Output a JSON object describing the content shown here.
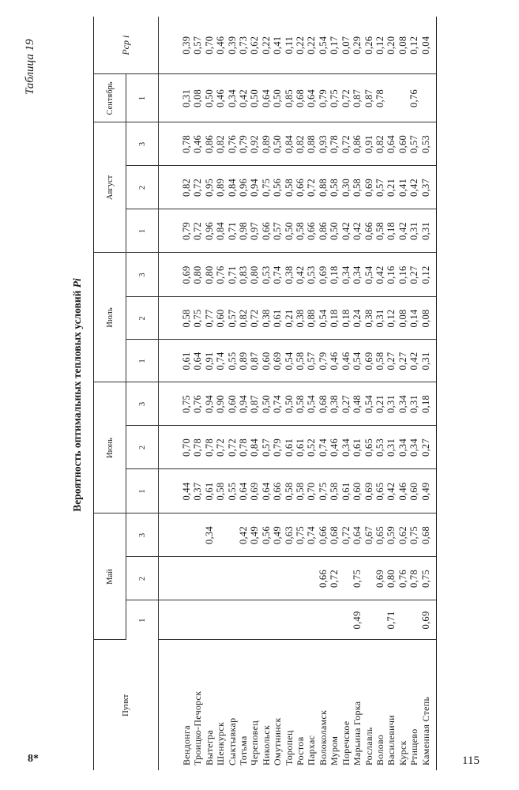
{
  "table_label": "Таблица 19",
  "title": "Вероятность оптимальных тепловых условий",
  "title_symbol": "Pi",
  "page_number": "115",
  "signature_mark": "8*",
  "headers": {
    "point": "Пункт",
    "months": [
      "Май",
      "Июнь",
      "Июль",
      "Август",
      "Сентябрь"
    ],
    "decades": [
      "1",
      "2",
      "3",
      "1",
      "2",
      "3",
      "1",
      "2",
      "3",
      "1",
      "2",
      "3",
      "1"
    ],
    "p_avg": "Pср i"
  },
  "rows": [
    {
      "name": "Вендонга",
      "v": [
        "",
        "",
        "",
        "0,44",
        "0,70",
        "0,75",
        "0,61",
        "0,58",
        "0,69",
        "0,79",
        "0,82",
        "0,78",
        "0,31",
        "0,39"
      ]
    },
    {
      "name": "Троицко-Печорск",
      "v": [
        "",
        "",
        "",
        "0,37",
        "0,78",
        "0,76",
        "0,64",
        "0,75",
        "0,80",
        "0,72",
        "0,72",
        "0,46",
        "0,08",
        "0,57"
      ]
    },
    {
      "name": "Вытегра",
      "v": [
        "",
        "",
        "0,34",
        "0,61",
        "0,78",
        "0,94",
        "0,91",
        "0,77",
        "0,80",
        "0,96",
        "0,95",
        "0,86",
        "0,50",
        "0,70"
      ]
    },
    {
      "name": "Шенкурск",
      "v": [
        "",
        "",
        "",
        "0,58",
        "0,72",
        "0,90",
        "0,74",
        "0,60",
        "0,76",
        "0,84",
        "0,89",
        "0,82",
        "0,46",
        "0,46"
      ]
    },
    {
      "name": "Сыктывкар",
      "v": [
        "",
        "",
        "",
        "0,55",
        "0,72",
        "0,60",
        "0,55",
        "0,57",
        "0,71",
        "0,71",
        "0,84",
        "0,76",
        "0,34",
        "0,39"
      ]
    },
    {
      "name": "Тотьма",
      "v": [
        "",
        "",
        "0,42",
        "0,64",
        "0,78",
        "0,94",
        "0,89",
        "0,82",
        "0,83",
        "0,98",
        "0,96",
        "0,79",
        "0,42",
        "0,73"
      ]
    },
    {
      "name": "Череповец",
      "v": [
        "",
        "",
        "0,49",
        "0,69",
        "0,84",
        "0,87",
        "0,87",
        "0,72",
        "0,80",
        "0,97",
        "0,94",
        "0,92",
        "0,50",
        "0,62"
      ]
    },
    {
      "name": "Никольск",
      "v": [
        "",
        "",
        "0,56",
        "0,64",
        "0,57",
        "0,50",
        "0,60",
        "0,38",
        "0,53",
        "0,66",
        "0,75",
        "0,89",
        "0,64",
        "0,22"
      ]
    },
    {
      "name": "Омутнинск",
      "v": [
        "",
        "",
        "0,49",
        "0,66",
        "0,79",
        "0,74",
        "0,69",
        "0,61",
        "0,74",
        "0,57",
        "0,56",
        "0,50",
        "0,50",
        "0,41"
      ]
    },
    {
      "name": "Торопец",
      "v": [
        "",
        "",
        "0,63",
        "0,58",
        "0,61",
        "0,50",
        "0,54",
        "0,21",
        "0,38",
        "0,50",
        "0,58",
        "0,84",
        "0,85",
        "0,11"
      ]
    },
    {
      "name": "Ростов",
      "v": [
        "",
        "",
        "0,75",
        "0,58",
        "0,61",
        "0,58",
        "0,58",
        "0,38",
        "0,42",
        "0,58",
        "0,66",
        "0,82",
        "0,68",
        "0,22"
      ]
    },
    {
      "name": "Пархас",
      "v": [
        "",
        "",
        "0,74",
        "0,70",
        "0,52",
        "0,54",
        "0,57",
        "0,88",
        "0,53",
        "0,66",
        "0,72",
        "0,88",
        "0,64",
        "0,22"
      ]
    },
    {
      "name": "Волоколамск",
      "v": [
        "",
        "0,66",
        "0,66",
        "0,75",
        "0,74",
        "0,68",
        "0,79",
        "0,54",
        "0,69",
        "0,86",
        "0,88",
        "0,93",
        "0,79",
        "0,54"
      ]
    },
    {
      "name": "Муром",
      "v": [
        "",
        "0,72",
        "0,68",
        "0,58",
        "0,46",
        "0,38",
        "0,46",
        "0,18",
        "0,18",
        "0,50",
        "0,58",
        "0,78",
        "0,75",
        "0,17"
      ]
    },
    {
      "name": "Поречское",
      "v": [
        "",
        "",
        "0,72",
        "0,61",
        "0,34",
        "0,27",
        "0,46",
        "0,18",
        "0,34",
        "0,42",
        "0,30",
        "0,72",
        "0,72",
        "0,07"
      ]
    },
    {
      "name": "Марьина Горка",
      "v": [
        "0,49",
        "0,75",
        "0,64",
        "0,60",
        "0,61",
        "0,48",
        "0,54",
        "0,24",
        "0,34",
        "0,42",
        "0,58",
        "0,86",
        "0,87",
        "0,29"
      ]
    },
    {
      "name": "Рославль",
      "v": [
        "",
        "",
        "0,67",
        "0,69",
        "0,65",
        "0,54",
        "0,69",
        "0,38",
        "0,54",
        "0,66",
        "0,69",
        "0,91",
        "0,87",
        "0,26"
      ]
    },
    {
      "name": "Волово",
      "v": [
        "",
        "0,69",
        "0,65",
        "0,65",
        "0,53",
        "0,21",
        "0,58",
        "0,31",
        "0,42",
        "0,58",
        "0,57",
        "0,82",
        "0,78",
        "0,12"
      ]
    },
    {
      "name": "Василевичи",
      "v": [
        "0,71",
        "0,80",
        "0,59",
        "0,42",
        "0,31",
        "0,31",
        "0,27",
        "0,12",
        "0,16",
        "0,18",
        "0,21",
        "0,64",
        "",
        "0,20"
      ]
    },
    {
      "name": "Курск",
      "v": [
        "",
        "0,76",
        "0,62",
        "0,46",
        "0,34",
        "0,34",
        "0,27",
        "0,08",
        "0,16",
        "0,42",
        "0,41",
        "0,60",
        "",
        "0,08"
      ]
    },
    {
      "name": "Ртищево",
      "v": [
        "",
        "0,78",
        "0,75",
        "0,60",
        "0,34",
        "0,31",
        "0,42",
        "0,14",
        "0,27",
        "0,31",
        "0,42",
        "0,57",
        "0,76",
        "0,12"
      ]
    },
    {
      "name": "Каменная Степь",
      "v": [
        "0,69",
        "0,75",
        "0,68",
        "0,49",
        "0,27",
        "0,18",
        "0,31",
        "0,08",
        "0,12",
        "0,31",
        "0,37",
        "0,53",
        "",
        "0,04"
      ]
    }
  ]
}
